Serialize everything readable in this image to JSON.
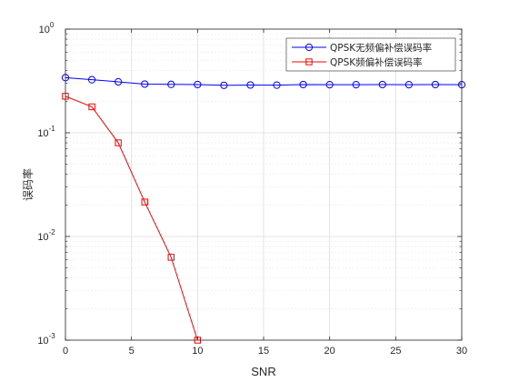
{
  "chart_data": {
    "type": "line",
    "y_scale": "log",
    "xlabel": "SNR",
    "ylabel": "误码率",
    "xlim": [
      0,
      30
    ],
    "ylim": [
      0.001,
      1
    ],
    "x_ticks": [
      0,
      5,
      10,
      15,
      20,
      25,
      30
    ],
    "y_ticks": [
      {
        "value": 0.001,
        "base": "10",
        "exp": "-3"
      },
      {
        "value": 0.01,
        "base": "10",
        "exp": "-2"
      },
      {
        "value": 0.1,
        "base": "10",
        "exp": "-1"
      },
      {
        "value": 1,
        "base": "10",
        "exp": "0"
      }
    ],
    "grid": true,
    "legend_position": "top-right",
    "series": [
      {
        "name": "QPSK无频偏补偿误码率",
        "color": "#0000ff",
        "marker": "circle",
        "x": [
          0,
          2,
          4,
          6,
          8,
          10,
          12,
          14,
          16,
          18,
          20,
          22,
          24,
          26,
          28,
          30
        ],
        "values": [
          0.34,
          0.325,
          0.31,
          0.295,
          0.293,
          0.292,
          0.287,
          0.289,
          0.288,
          0.292,
          0.291,
          0.291,
          0.292,
          0.291,
          0.292,
          0.291
        ]
      },
      {
        "name": "QPSK频偏补偿误码率",
        "color": "#ff0000",
        "marker": "square",
        "x": [
          0,
          2,
          4,
          6,
          8,
          10
        ],
        "values": [
          0.225,
          0.178,
          0.08,
          0.0215,
          0.0063,
          0.001
        ]
      }
    ]
  }
}
